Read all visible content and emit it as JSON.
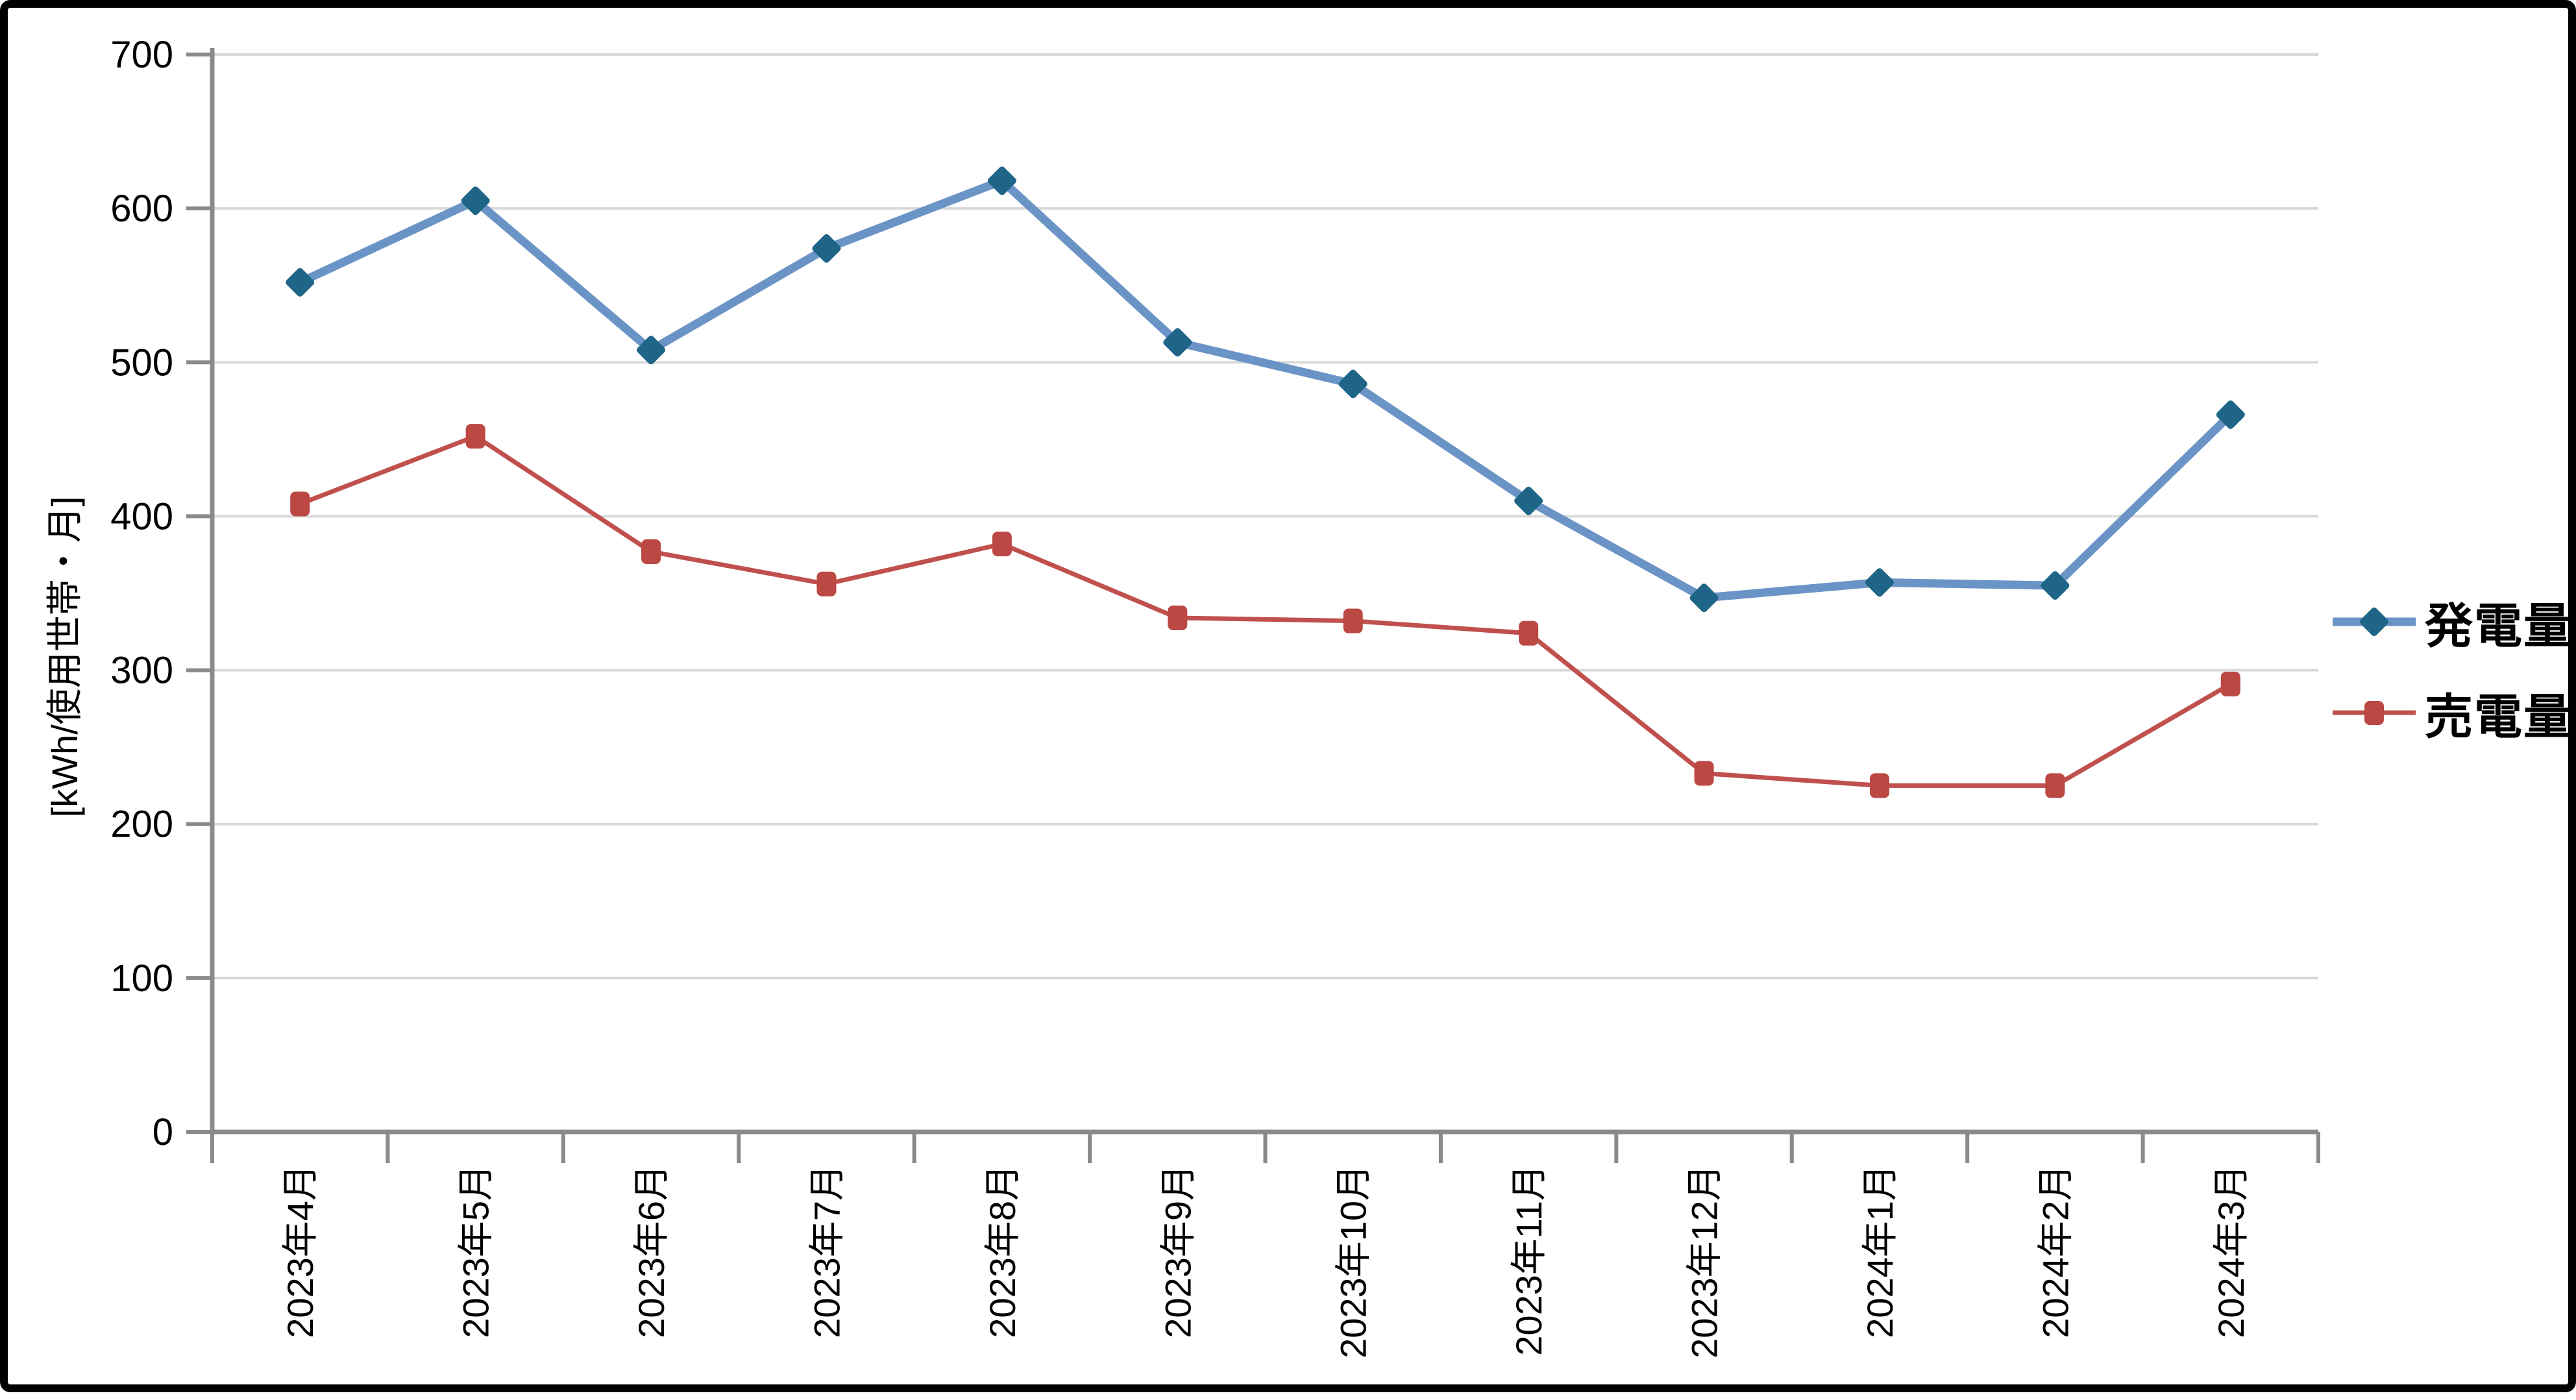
{
  "chart_data": {
    "type": "line",
    "title": "",
    "xlabel": "",
    "ylabel": "[kWh/使用世帯・月]",
    "categories": [
      "2023年4月",
      "2023年5月",
      "2023年6月",
      "2023年7月",
      "2023年8月",
      "2023年9月",
      "2023年10月",
      "2023年11月",
      "2023年12月",
      "2024年1月",
      "2024年2月",
      "2024年3月"
    ],
    "series": [
      {
        "name": "発電量",
        "marker": "diamond",
        "line_color": "#6A94C6",
        "marker_color": "#1F6587",
        "line_width": 13,
        "values": [
          552,
          605,
          508,
          574,
          618,
          513,
          486,
          410,
          347,
          357,
          355,
          466
        ]
      },
      {
        "name": "売電量",
        "marker": "square",
        "line_color": "#C0504D",
        "marker_color": "#BC4844",
        "line_width": 7,
        "values": [
          408,
          452,
          377,
          356,
          382,
          334,
          332,
          324,
          233,
          225,
          225,
          291
        ]
      }
    ],
    "ylim": [
      0,
      700
    ],
    "ytick_step": 100,
    "ytick_labels": [
      "0",
      "100",
      "200",
      "300",
      "400",
      "500",
      "600",
      "700"
    ],
    "grid": true,
    "legend_position": "right"
  },
  "colors": {
    "background": "#FFFFFF",
    "frame_border": "#000000",
    "gridline": "#D9D9D9",
    "axis": "#8A8A8A",
    "tick": "#8A8A8A",
    "tick_label": "#000000",
    "legend_text": "#000000"
  }
}
